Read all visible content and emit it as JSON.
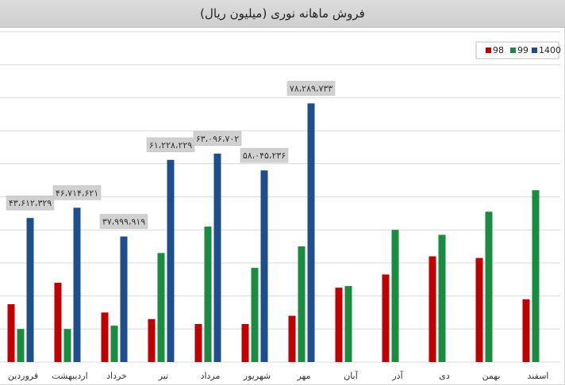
{
  "chart_data": {
    "type": "bar",
    "title": "فروش ماهانه نوری (میلیون ریال)",
    "categories": [
      "فروردین",
      "اردیبهشت",
      "خرداد",
      "تیر",
      "مرداد",
      "شهریور",
      "مهر",
      "آبان",
      "آذر",
      "دی",
      "بهمن",
      "اسفند"
    ],
    "series": [
      {
        "name": "98",
        "color": "#c00000",
        "values": [
          17.5,
          24,
          15,
          13,
          11.5,
          11.5,
          14,
          22.5,
          26.5,
          32,
          31.5,
          19
        ]
      },
      {
        "name": "99",
        "color": "#1a8c3f",
        "values": [
          10,
          10,
          11,
          33,
          41,
          28.5,
          35,
          23,
          40,
          38.5,
          45.5,
          52
        ]
      },
      {
        "name": "1400",
        "color": "#1f4e8c",
        "values": [
          43.6,
          46.7,
          38,
          61.2,
          63.1,
          58,
          78.3,
          null,
          null,
          null,
          null,
          null
        ]
      }
    ],
    "data_labels": [
      "۴۳،۶۱۲،۳۲۹",
      "۴۶،۷۱۴،۶۲۱",
      "۳۷،۹۹۹،۹۱۹",
      "۶۱،۲۲۸،۲۲۹",
      "۶۳،۰۹۶،۷۰۲",
      "۵۸،۰۴۵،۲۳۶",
      "۷۸،۲۸۹،۷۳۳"
    ],
    "ylim": [
      0,
      100
    ],
    "grid": true,
    "legend": "top-right"
  }
}
